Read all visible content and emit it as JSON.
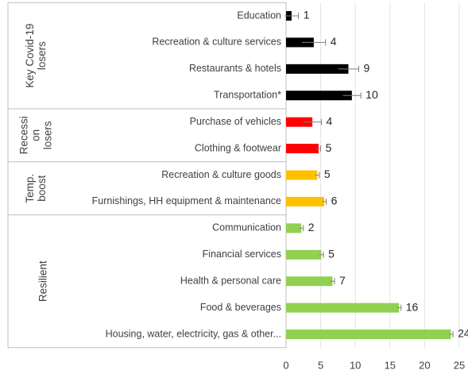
{
  "chart_data": {
    "type": "bar",
    "orientation": "horizontal",
    "grid": true,
    "xlim": [
      0,
      25
    ],
    "xticks": [
      0,
      5,
      10,
      15,
      20,
      25
    ],
    "groups": [
      {
        "name_lines": [
          "Key Covid-19",
          "losers"
        ],
        "color": "#000000",
        "categories": [
          "Education",
          "Recreation & culture services",
          "Restaurants & hotels",
          "Transportation*"
        ],
        "values": [
          0.8,
          4.0,
          9.0,
          9.5
        ],
        "errors": [
          1.0,
          1.7,
          1.5,
          1.3
        ],
        "value_labels": [
          "1",
          "4",
          "9",
          "10"
        ]
      },
      {
        "name_lines": [
          "Recessi",
          "on",
          "losers"
        ],
        "color": "#ff0000",
        "categories": [
          "Purchase of vehicles",
          "Clothing & footwear"
        ],
        "values": [
          3.8,
          4.7
        ],
        "errors": [
          1.3,
          0.3
        ],
        "value_labels": [
          "4",
          "5"
        ]
      },
      {
        "name_lines": [
          "Temp.",
          "boost"
        ],
        "color": "#ffc000",
        "categories": [
          "Recreation & culture goods",
          "Furnishings, HH equipment & maintenance"
        ],
        "values": [
          4.5,
          5.5
        ],
        "errors": [
          0.3,
          0.3
        ],
        "value_labels": [
          "5",
          "6"
        ]
      },
      {
        "name_lines": [
          "Resilient"
        ],
        "color": "#92d050",
        "categories": [
          "Communication",
          "Financial services",
          "Health & personal care",
          "Food & beverages",
          "Housing, water, electricity, gas & other..."
        ],
        "values": [
          2.2,
          5.1,
          6.7,
          16.3,
          23.8
        ],
        "errors": [
          0.3,
          0.3,
          0.3,
          0.3,
          0.3
        ],
        "value_labels": [
          "2",
          "5",
          "7",
          "16",
          "24"
        ]
      }
    ]
  }
}
